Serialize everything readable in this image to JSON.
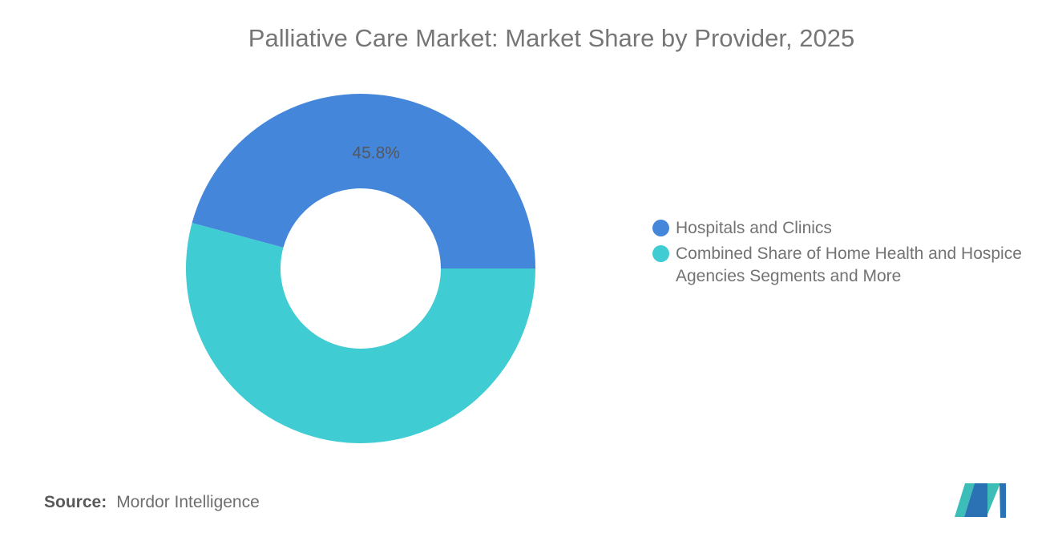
{
  "title": "Palliative Care Market: Market Share by Provider, 2025",
  "chart_data": {
    "type": "pie",
    "donut": true,
    "title": "Palliative Care Market: Market Share by Provider, 2025",
    "slices": [
      {
        "label": "Hospitals and Clinics",
        "value": 45.8,
        "display_value": "45.8%",
        "color": "#4486DA"
      },
      {
        "label": "Combined Share of Home Health and Hospice Agencies Segments and More",
        "value": 54.2,
        "display_value": "",
        "color": "#3FCCD3"
      }
    ],
    "start_angle_deg": 0,
    "direction": "counterclockwise",
    "inner_radius_ratio": 0.46,
    "legend_position": "right",
    "label_color": "#54585E"
  },
  "source": {
    "label": "Source:",
    "value": "Mordor Intelligence"
  },
  "logo": {
    "alt": "Mordor Intelligence logo",
    "teal": "#3DBDB8",
    "blue": "#2B72B4"
  }
}
